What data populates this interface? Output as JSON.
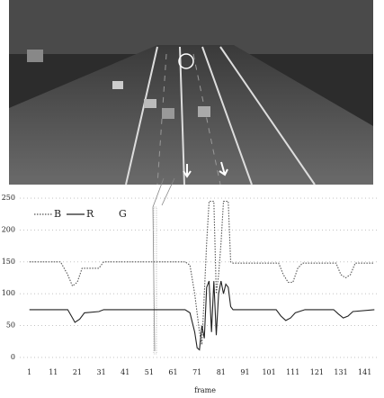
{
  "chart_data": {
    "type": "line",
    "xlabel": "frame",
    "xlim": [
      -3,
      146
    ],
    "ylim": [
      -5,
      260
    ],
    "xticks": [
      1,
      11,
      21,
      31,
      41,
      51,
      61,
      71,
      81,
      91,
      101,
      111,
      121,
      131,
      141
    ],
    "yticks": [
      0,
      50,
      100,
      150,
      200,
      250
    ],
    "grid": true,
    "series": [
      {
        "name": "B",
        "color": "#555",
        "dash": "dotted",
        "x": [
          1,
          14,
          17,
          19,
          21,
          23,
          30,
          32,
          66,
          68,
          70,
          72,
          73,
          74,
          75,
          76,
          78,
          79,
          80,
          81,
          82,
          84,
          85,
          86,
          105,
          107,
          109,
          111,
          113,
          115,
          129,
          131,
          133,
          135,
          137,
          145
        ],
        "values": [
          150,
          150,
          130,
          112,
          118,
          140,
          140,
          150,
          150,
          145,
          100,
          40,
          20,
          100,
          180,
          245,
          245,
          100,
          130,
          180,
          245,
          245,
          150,
          148,
          148,
          130,
          118,
          118,
          140,
          148,
          148,
          130,
          125,
          130,
          148,
          148
        ]
      },
      {
        "name": "R",
        "color": "#222",
        "dash": "solid",
        "x": [
          1,
          17,
          19,
          20,
          22,
          24,
          30,
          32,
          66,
          68,
          70,
          71,
          72,
          73,
          74,
          75,
          76,
          77,
          78,
          79,
          80,
          81,
          82,
          83,
          84,
          85,
          86,
          104,
          106,
          108,
          110,
          112,
          116,
          128,
          130,
          132,
          134,
          136,
          145
        ],
        "values": [
          75,
          75,
          62,
          55,
          60,
          70,
          72,
          75,
          75,
          70,
          40,
          15,
          12,
          50,
          30,
          110,
          120,
          40,
          120,
          35,
          100,
          120,
          100,
          115,
          110,
          80,
          75,
          75,
          65,
          58,
          62,
          70,
          75,
          75,
          68,
          62,
          65,
          72,
          75
        ]
      },
      {
        "name": "G",
        "color": "#000",
        "dash": "none",
        "x": [],
        "values": []
      }
    ]
  }
}
